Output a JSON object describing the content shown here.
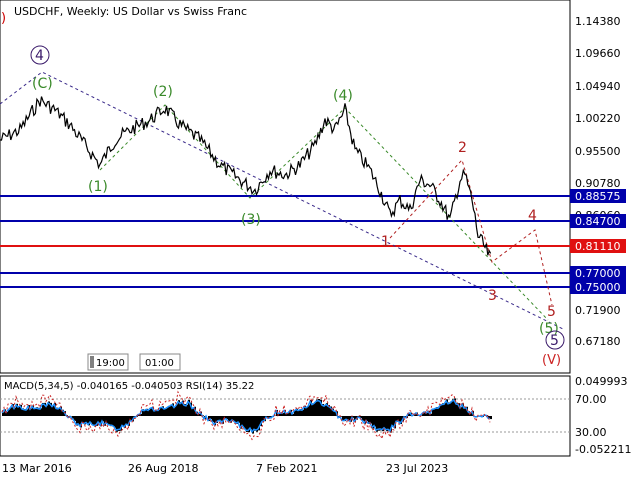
{
  "header": {
    "symbol_title": "USDCHF, Weekly:  US Dollar vs Swiss Franc"
  },
  "price_axis": {
    "ticks": [
      "1.14380",
      "1.09660",
      "1.04940",
      "1.00220",
      "0.95500",
      "0.90780",
      "0.86060",
      "0.71900",
      "0.67180"
    ]
  },
  "levels": [
    {
      "value": "0.88575",
      "color": "#0000aa"
    },
    {
      "value": "0.84700",
      "color": "#0000aa"
    },
    {
      "value": "0.81110",
      "color": "#e01010"
    },
    {
      "value": "0.77000",
      "color": "#0000aa"
    },
    {
      "value": "0.75000",
      "color": "#0000aa"
    }
  ],
  "wave_labels": {
    "green": [
      "(C)",
      "(2)",
      "(4)",
      "(1)",
      "(3)",
      "(5)"
    ],
    "red": [
      "2",
      "1",
      "4",
      "3",
      "5"
    ],
    "purple": [
      "4",
      "5"
    ],
    "dark_red": [
      "(V)"
    ]
  },
  "time_markers": [
    "19:00",
    "01:00"
  ],
  "indicator": {
    "label": "MACD(5,34,5) -0.040165 -0.040503 RSI(14) 35.22",
    "ticks": [
      "0.049993",
      "70.00",
      "30.00",
      "-0.052211"
    ]
  },
  "time_axis": {
    "ticks": [
      "13 Mar 2016",
      "26 Aug 2018",
      "7 Feb 2021",
      "23 Jul 2023"
    ]
  },
  "colors": {
    "candles": "#000000",
    "support_line": "#0000aa",
    "current_price_line": "#e01010",
    "macd_line": "#1e90ff",
    "rsi_line": "#cc2222",
    "wave_green": "#3a8a2a",
    "wave_red": "#b02020",
    "wave_purple": "#3a1a6a"
  }
}
